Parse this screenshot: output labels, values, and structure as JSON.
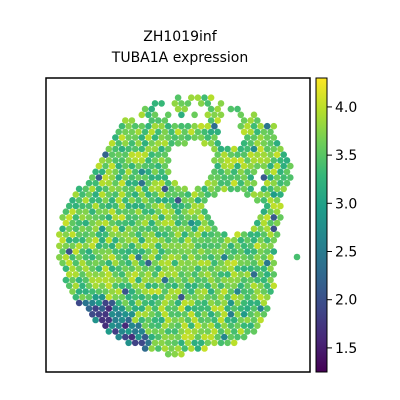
{
  "chart_data": {
    "type": "scatter",
    "title_lines": [
      "ZH1019inf",
      "TUBA1A expression"
    ],
    "xlabel": "",
    "ylabel": "",
    "colorbar": {
      "colormap": "viridis",
      "range": [
        1.25,
        4.3
      ],
      "ticks": [
        1.5,
        2.0,
        2.5,
        3.0,
        3.5,
        4.0
      ],
      "tick_labels": [
        "1.5",
        "2.0",
        "2.5",
        "3.0",
        "3.5",
        "4.0"
      ]
    },
    "grid": false,
    "legend": "none",
    "points": {
      "marker": "hexagon",
      "typical_value": 3.6,
      "low_value_region": "lower-left edge",
      "outliers": [
        {
          "description": "isolated spot right of tissue",
          "value": 3.4
        }
      ]
    },
    "colors": {
      "low": "#440154",
      "mid": "#21918c",
      "high": "#fde725"
    }
  }
}
